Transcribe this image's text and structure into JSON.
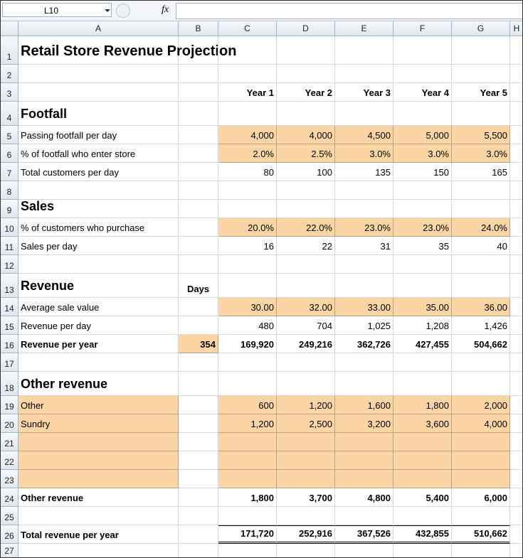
{
  "formula_bar": {
    "name_box": "L10",
    "fx": "fx"
  },
  "sheet": {
    "columns": [
      "A",
      "B",
      "C",
      "D",
      "E",
      "F",
      "G",
      "H"
    ],
    "row_numbers": [
      1,
      2,
      3,
      4,
      5,
      6,
      7,
      8,
      9,
      10,
      11,
      12,
      13,
      14,
      15,
      16,
      17,
      18,
      19,
      20,
      21,
      22,
      23,
      24,
      25,
      26,
      27
    ],
    "rows": [
      {
        "A": "Retail Store Revenue Projection"
      },
      {},
      {
        "C": "Year 1",
        "D": "Year 2",
        "E": "Year 3",
        "F": "Year 4",
        "G": "Year 5"
      },
      {
        "A": "Footfall"
      },
      {
        "A": "Passing footfall per day",
        "C": "4,000",
        "D": "4,000",
        "E": "4,500",
        "F": "5,000",
        "G": "5,500"
      },
      {
        "A": "% of footfall who enter store",
        "C": "2.0%",
        "D": "2.5%",
        "E": "3.0%",
        "F": "3.0%",
        "G": "3.0%"
      },
      {
        "A": "Total customers per day",
        "C": "80",
        "D": "100",
        "E": "135",
        "F": "150",
        "G": "165"
      },
      {},
      {
        "A": "Sales"
      },
      {
        "A": "% of customers who purchase",
        "C": "20.0%",
        "D": "22.0%",
        "E": "23.0%",
        "F": "23.0%",
        "G": "24.0%"
      },
      {
        "A": "Sales per day",
        "C": "16",
        "D": "22",
        "E": "31",
        "F": "35",
        "G": "40"
      },
      {},
      {
        "A": "Revenue",
        "B": "Days"
      },
      {
        "A": "Average sale value",
        "C": "30.00",
        "D": "32.00",
        "E": "33.00",
        "F": "35.00",
        "G": "36.00"
      },
      {
        "A": "Revenue per day",
        "C": "480",
        "D": "704",
        "E": "1,025",
        "F": "1,208",
        "G": "1,426"
      },
      {
        "A": "Revenue per year",
        "B": "354",
        "C": "169,920",
        "D": "249,216",
        "E": "362,726",
        "F": "427,455",
        "G": "504,662"
      },
      {},
      {
        "A": "Other revenue"
      },
      {
        "A": "Other",
        "C": "600",
        "D": "1,200",
        "E": "1,600",
        "F": "1,800",
        "G": "2,000"
      },
      {
        "A": "Sundry",
        "C": "1,200",
        "D": "2,500",
        "E": "3,200",
        "F": "3,600",
        "G": "4,000"
      },
      {},
      {},
      {},
      {
        "A": "Other revenue",
        "C": "1,800",
        "D": "3,700",
        "E": "4,800",
        "F": "5,400",
        "G": "6,000"
      },
      {},
      {
        "A": "Total revenue per year",
        "C": "171,720",
        "D": "252,916",
        "E": "367,526",
        "F": "432,855",
        "G": "510,662"
      },
      {}
    ]
  }
}
